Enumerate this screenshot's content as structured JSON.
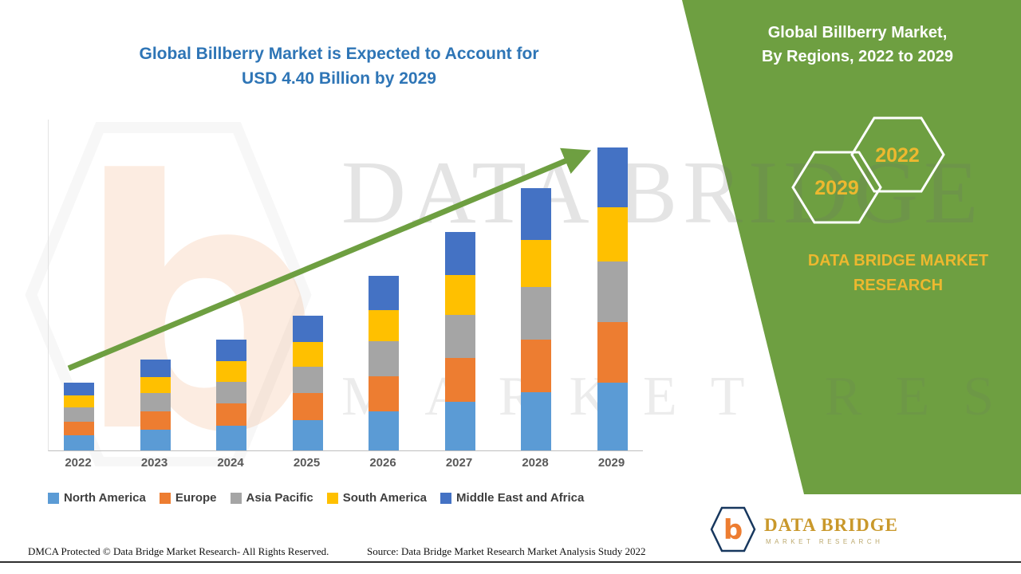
{
  "page": {
    "title_line1": "Global Billberry Market is Expected to Account for",
    "title_line2": "USD 4.40 Billion  by 2029",
    "title_color": "#2E75B6",
    "footer_dmca": "DMCA Protected © Data Bridge Market Research- All Rights Reserved.",
    "footer_source": "Source: Data Bridge Market Research Market Analysis Study 2022"
  },
  "side_panel": {
    "panel_color": "#6E9F41",
    "title_line1": "Global Billberry Market,",
    "title_line2": "By Regions, 2022 to 2029",
    "hexagon_front_label": "2029",
    "hexagon_back_label": "2022",
    "brand_line1": "DATA BRIDGE MARKET",
    "brand_line2": "RESEARCH",
    "brand_color": "#EDB82F"
  },
  "watermark": {
    "big_letter": "b",
    "line1": "DATA BRIDGE",
    "line2": "MARKET RESEARCH"
  },
  "footer_logo": {
    "letter": "b",
    "name": "DATA BRIDGE",
    "subtitle": "MARKET RESEARCH"
  },
  "chart_data": {
    "type": "bar",
    "stacked": true,
    "title": "Global Billberry Market is Expected to Account for USD 4.40 Billion by 2029",
    "unit": "USD Billion",
    "categories": [
      "2022",
      "2023",
      "2024",
      "2025",
      "2026",
      "2027",
      "2028",
      "2029"
    ],
    "series": [
      {
        "name": "North America",
        "color": "#5B9BD5",
        "values": [
          0.22,
          0.3,
          0.36,
          0.44,
          0.57,
          0.71,
          0.85,
          0.98
        ]
      },
      {
        "name": "Europe",
        "color": "#ED7D31",
        "values": [
          0.2,
          0.27,
          0.32,
          0.39,
          0.51,
          0.63,
          0.76,
          0.88
        ]
      },
      {
        "name": "Asia Pacific",
        "color": "#A5A5A5",
        "values": [
          0.2,
          0.26,
          0.32,
          0.39,
          0.5,
          0.63,
          0.76,
          0.88
        ]
      },
      {
        "name": "South America",
        "color": "#FFC000",
        "values": [
          0.18,
          0.24,
          0.29,
          0.35,
          0.46,
          0.57,
          0.68,
          0.79
        ]
      },
      {
        "name": "Middle East and Africa",
        "color": "#4472C4",
        "values": [
          0.18,
          0.25,
          0.32,
          0.39,
          0.49,
          0.63,
          0.75,
          0.87
        ]
      }
    ],
    "totals": [
      0.98,
      1.32,
      1.61,
      1.96,
      2.53,
      3.17,
      3.8,
      4.4
    ],
    "ylim": [
      0,
      4.8
    ],
    "gridlines": false,
    "axis_labels_visible": "x-only",
    "legend_position": "bottom",
    "trend_arrow": {
      "present": true,
      "color": "#6E9F41",
      "direction": "up-right"
    }
  }
}
